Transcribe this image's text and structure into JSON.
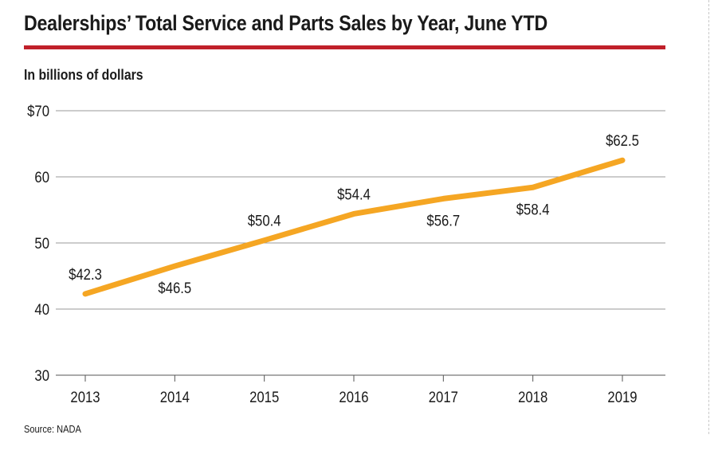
{
  "colors": {
    "accent_rule": "#c0202a",
    "line": "#f5a623",
    "grid": "#9a9a9a",
    "text": "#1a1a1a"
  },
  "source": "Source: NADA",
  "chart_data": {
    "type": "line",
    "title": "Dealerships’ Total Service and Parts Sales by Year, June YTD",
    "subtitle": "In billions of dollars",
    "xlabel": "",
    "ylabel": "",
    "categories": [
      "2013",
      "2014",
      "2015",
      "2016",
      "2017",
      "2018",
      "2019"
    ],
    "series": [
      {
        "values": [
          42.3,
          46.5,
          50.4,
          54.4,
          56.7,
          58.4,
          62.5
        ],
        "labels": [
          "$42.3",
          "$46.5",
          "$50.4",
          "$54.4",
          "$56.7",
          "$58.4",
          "$62.5"
        ]
      }
    ],
    "ylim": [
      30,
      70
    ],
    "yticks": [
      30,
      40,
      50,
      60,
      70
    ],
    "ytick_labels": [
      "30",
      "40",
      "50",
      "60",
      "$70"
    ],
    "label_positions": [
      "above",
      "below",
      "above",
      "above",
      "below",
      "below",
      "above"
    ],
    "grid": true,
    "legend": "none"
  }
}
